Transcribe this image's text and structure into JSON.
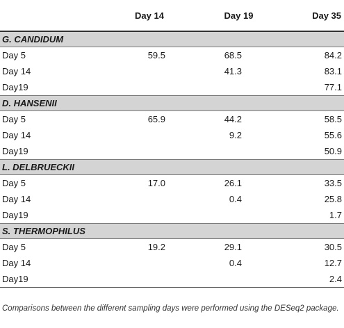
{
  "table": {
    "headers": [
      "",
      "Day 14",
      "Day 19",
      "Day 35"
    ],
    "groups": [
      {
        "name": "G. CANDIDUM",
        "rows": [
          {
            "label": "Day 5",
            "day14": "59.5",
            "day19": "68.5",
            "day35": "84.2"
          },
          {
            "label": "Day 14",
            "day14": "",
            "day19": "41.3",
            "day35": "83.1"
          },
          {
            "label": "Day19",
            "day14": "",
            "day19": "",
            "day35": "77.1"
          }
        ]
      },
      {
        "name": "D. HANSENII",
        "rows": [
          {
            "label": "Day 5",
            "day14": "65.9",
            "day19": "44.2",
            "day35": "58.5"
          },
          {
            "label": "Day 14",
            "day14": "",
            "day19": "9.2",
            "day35": "55.6"
          },
          {
            "label": "Day19",
            "day14": "",
            "day19": "",
            "day35": "50.9"
          }
        ]
      },
      {
        "name": "L. DELBRUECKII",
        "rows": [
          {
            "label": "Day 5",
            "day14": "17.0",
            "day19": "26.1",
            "day35": "33.5"
          },
          {
            "label": "Day 14",
            "day14": "",
            "day19": "0.4",
            "day35": "25.8"
          },
          {
            "label": "Day19",
            "day14": "",
            "day19": "",
            "day35": "1.7"
          }
        ]
      },
      {
        "name": "S. THERMOPHILUS",
        "rows": [
          {
            "label": "Day 5",
            "day14": "19.2",
            "day19": "29.1",
            "day35": "30.5"
          },
          {
            "label": "Day 14",
            "day14": "",
            "day19": "0.4",
            "day35": "12.7"
          },
          {
            "label": "Day19",
            "day14": "",
            "day19": "",
            "day35": "2.4"
          }
        ]
      }
    ]
  },
  "footnote": "Comparisons between the different sampling days were performed using the DESeq2 package."
}
